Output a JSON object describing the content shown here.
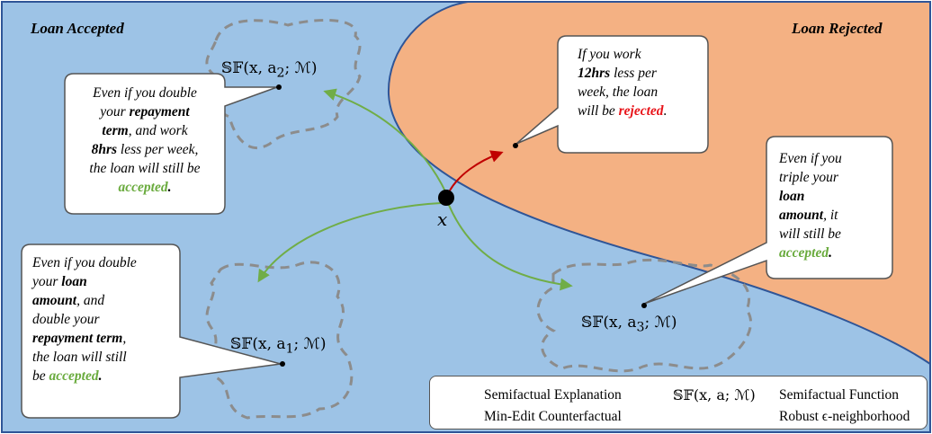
{
  "regions": {
    "accepted_label": "Loan Accepted",
    "rejected_label": "Loan Rejected"
  },
  "point": {
    "label": "x"
  },
  "semifactuals": {
    "a1": {
      "fn": "𝕊𝔽",
      "args": "(x, a",
      "sub": "1",
      "tail": "; ℳ)"
    },
    "a2": {
      "fn": "𝕊𝔽",
      "args": "(x, a",
      "sub": "2",
      "tail": "; ℳ)"
    },
    "a3": {
      "fn": "𝕊𝔽",
      "args": "(x, a",
      "sub": "3",
      "tail": "; ℳ)"
    }
  },
  "bubbles": {
    "top_left": {
      "p1": "Even if you double",
      "p2": "your ",
      "b1": "repayment",
      "b2": "term",
      "p3": ", and work",
      "b3": "8hrs",
      "p4": " less per week,",
      "p5": "the loan will still be",
      "accent": "accepted",
      "end": "."
    },
    "top_center": {
      "p1": "If you work",
      "b1": "12hrs",
      "p2": " less per",
      "p3": "week, the loan",
      "p4": "will be ",
      "accent": "rejected",
      "end": "."
    },
    "right": {
      "p1": "Even if you",
      "p2": "triple your",
      "b1": "loan",
      "b2": "amount",
      "p3": ", it",
      "p4": "will still be",
      "accent": "accepted",
      "end": "."
    },
    "bottom_left": {
      "p1": "Even if you double",
      "p2": "your ",
      "b1": "loan",
      "b2": "amount",
      "p3": ", and",
      "p4": "double your",
      "b3": "repayment term",
      "p5": ",",
      "p6": "the loan will still",
      "p7": "be ",
      "accent": "accepted",
      "end": "."
    }
  },
  "legend": {
    "semifactual_explanation": "Semifactual Explanation",
    "min_edit_counterfactual": "Min-Edit Counterfactual",
    "sf_symbol": "𝕊𝔽(x, a; ℳ)",
    "semifactual_function": "Semifactual Function",
    "robust_neighborhood": "Robust ϵ-neighborhood"
  },
  "colors": {
    "accepted_region": "#9dc3e6",
    "rejected_region": "#f4b183",
    "green_arrow": "#70ad47",
    "red_arrow": "#c00000",
    "dashed_outline": "#8c8c8c",
    "border_blue": "#2f5597"
  }
}
